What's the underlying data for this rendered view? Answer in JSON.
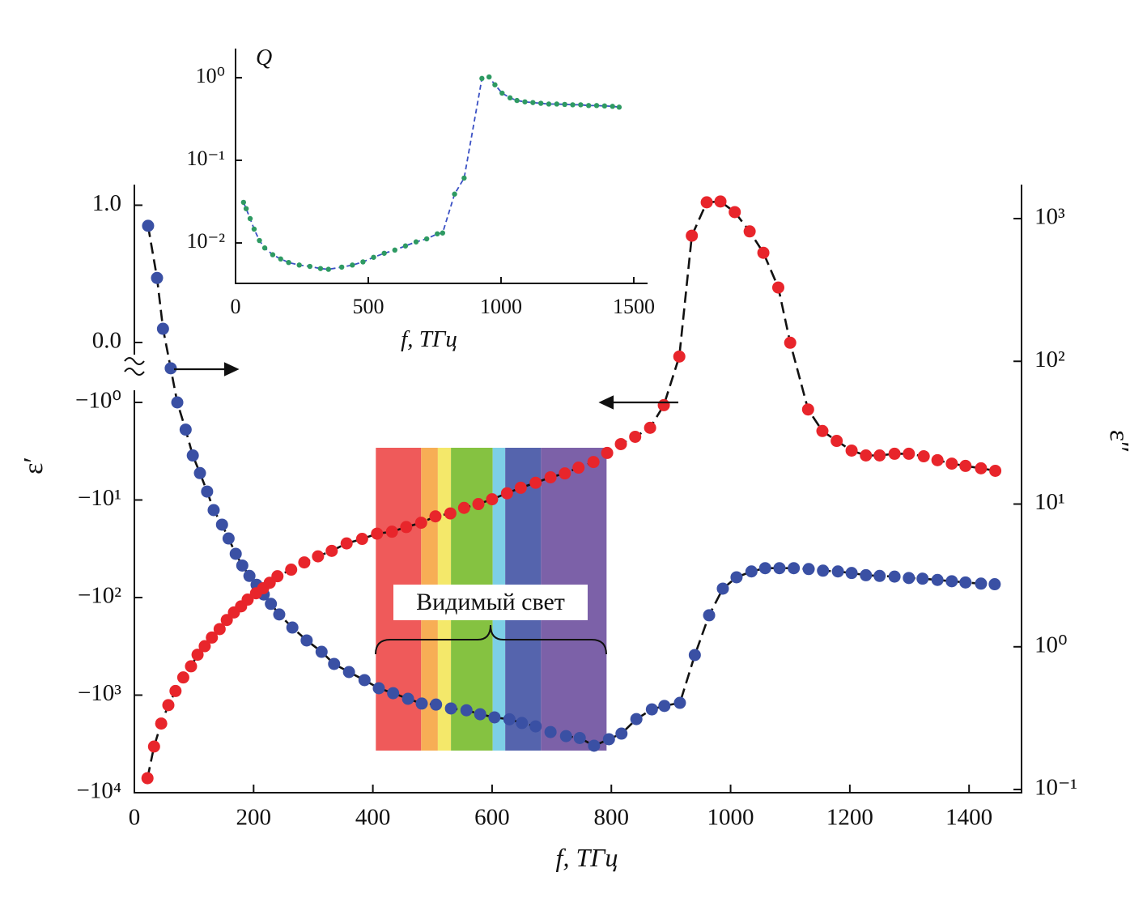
{
  "chart_data": [
    {
      "type": "line",
      "x_label": "f, ТГц",
      "y_label": "ε′",
      "y2_label": "ε″",
      "annotation": "Видимый свет",
      "xlim": [
        0,
        1488
      ],
      "xticks": [
        0,
        200,
        400,
        600,
        800,
        1000,
        1200,
        1400
      ],
      "ylim": [
        -10000,
        1.15
      ],
      "yticks": [
        {
          "value": 1,
          "label": "1.0"
        },
        {
          "value": 0,
          "label": "0.0"
        },
        {
          "value": -1,
          "label": "−10⁰"
        },
        {
          "value": -10,
          "label": "−10¹"
        },
        {
          "value": -100,
          "label": "−10²"
        },
        {
          "value": -1000,
          "label": "−10³"
        },
        {
          "value": -10000,
          "label": "−10⁴"
        }
      ],
      "y2lim": [
        0.095,
        1730
      ],
      "y2scale": "log",
      "y2ticks": [
        {
          "value": 0.1,
          "label": "10⁻¹"
        },
        {
          "value": 1,
          "label": "10⁰"
        },
        {
          "value": 10,
          "label": "10¹"
        },
        {
          "value": 100,
          "label": "10²"
        },
        {
          "value": 1000,
          "label": "10³"
        }
      ],
      "visible_bands": [
        {
          "from": 405,
          "to": 481,
          "color": "#ef5a5a"
        },
        {
          "from": 481,
          "to": 509,
          "color": "#f7ae55"
        },
        {
          "from": 509,
          "to": 531,
          "color": "#f4e86a"
        },
        {
          "from": 531,
          "to": 601,
          "color": "#85c241"
        },
        {
          "from": 601,
          "to": 622,
          "color": "#7dcfe6"
        },
        {
          "from": 622,
          "to": 682,
          "color": "#5564ad"
        },
        {
          "from": 682,
          "to": 792,
          "color": "#7c61a8"
        }
      ],
      "series": [
        {
          "color": "#3a50a4",
          "line_color": "#111111",
          "x": [
            23,
            38,
            48,
            61,
            72,
            86,
            98,
            110,
            122,
            133,
            147,
            158,
            170,
            181,
            193,
            205,
            217,
            229,
            243,
            265,
            289,
            314,
            335,
            360,
            386,
            410,
            434,
            459,
            482,
            506,
            531,
            557,
            580,
            604,
            629,
            650,
            673,
            698,
            724,
            747,
            771,
            796,
            817,
            842,
            868,
            889,
            915,
            940,
            964,
            987,
            1010,
            1035,
            1058,
            1082,
            1106,
            1131,
            1155,
            1180,
            1203,
            1227,
            1250,
            1275,
            1299,
            1322,
            1347,
            1371,
            1394,
            1420,
            1443
          ],
          "values": [
            0.85,
            0.47,
            0.1,
            -0.43,
            -1.0,
            -1.9,
            -3.5,
            -5.3,
            -8.2,
            -12.7,
            -17.9,
            -24.8,
            -35.6,
            -47,
            -60,
            -74,
            -93,
            -116,
            -149,
            -203,
            -275,
            -360,
            -479,
            -580,
            -702,
            -850,
            -955,
            -1090,
            -1220,
            -1250,
            -1370,
            -1430,
            -1570,
            -1690,
            -1770,
            -1930,
            -2090,
            -2390,
            -2630,
            -2750,
            -3300,
            -2830,
            -2480,
            -1760,
            -1400,
            -1290,
            -1200,
            -388,
            -152,
            -81,
            -62,
            -54,
            -50,
            -50,
            -50,
            -51,
            -53,
            -54,
            -56,
            -59,
            -60,
            -61,
            -63,
            -64,
            -66,
            -68,
            -70,
            -72,
            -73
          ]
        },
        {
          "color": "#e8252b",
          "line_color": "#111111",
          "axis": "y2",
          "x": [
            22,
            33,
            45,
            57,
            69,
            82,
            95,
            106,
            118,
            130,
            143,
            155,
            167,
            179,
            190,
            204,
            216,
            227,
            240,
            263,
            285,
            308,
            331,
            356,
            382,
            407,
            432,
            456,
            481,
            505,
            530,
            553,
            577,
            600,
            625,
            648,
            673,
            698,
            722,
            745,
            770,
            793,
            816,
            840,
            865,
            888,
            914,
            935,
            960,
            983,
            1007,
            1032,
            1055,
            1080,
            1100,
            1130,
            1154,
            1178,
            1203,
            1227,
            1250,
            1275,
            1299,
            1324,
            1347,
            1371,
            1394,
            1420,
            1444
          ],
          "values": [
            0.12,
            0.2,
            0.29,
            0.39,
            0.49,
            0.61,
            0.73,
            0.88,
            1.01,
            1.16,
            1.33,
            1.54,
            1.74,
            1.92,
            2.14,
            2.37,
            2.57,
            2.81,
            3.12,
            3.47,
            3.9,
            4.3,
            4.7,
            5.3,
            5.7,
            6.2,
            6.4,
            6.9,
            7.4,
            8.2,
            8.6,
            9.4,
            10,
            10.8,
            11.9,
            13,
            14.1,
            15.4,
            16.4,
            18,
            19.7,
            22.8,
            26.3,
            29.6,
            34.2,
            49.3,
            108,
            759,
            1300,
            1318,
            1110,
            813,
            576,
            329,
            135,
            46,
            32.5,
            27.7,
            23.7,
            21.9,
            21.9,
            22.5,
            22.5,
            21.6,
            20.3,
            19.2,
            18.5,
            17.8,
            17.1
          ]
        }
      ]
    },
    {
      "type": "line",
      "x_label": "f, ТГц",
      "y_label": "Q",
      "xlim": [
        0,
        1552
      ],
      "xticks": [
        0,
        500,
        1000,
        1500
      ],
      "ylim": [
        0.00324,
        2.25
      ],
      "yscale": "log",
      "yticks": [
        {
          "value": 0.01,
          "label": "10⁻²"
        },
        {
          "value": 0.1,
          "label": "10⁻¹"
        },
        {
          "value": 1,
          "label": "10⁰"
        }
      ],
      "series": [
        {
          "color": "#2e9a62",
          "line_color": "#3a50c4",
          "x": [
            30,
            40,
            55,
            70,
            90,
            110,
            140,
            170,
            200,
            240,
            280,
            320,
            350,
            400,
            440,
            480,
            520,
            560,
            600,
            640,
            680,
            720,
            760,
            780,
            825,
            861,
            928,
            955,
            977,
            1004,
            1034,
            1060,
            1090,
            1120,
            1150,
            1180,
            1210,
            1240,
            1270,
            1300,
            1330,
            1360,
            1390,
            1420,
            1445
          ],
          "values": [
            0.031,
            0.026,
            0.0197,
            0.0147,
            0.0107,
            0.0087,
            0.0072,
            0.0064,
            0.0058,
            0.0054,
            0.0052,
            0.0049,
            0.0048,
            0.0051,
            0.0054,
            0.0059,
            0.0067,
            0.0075,
            0.0082,
            0.0092,
            0.0103,
            0.0112,
            0.0129,
            0.0132,
            0.039,
            0.061,
            0.98,
            1.02,
            0.82,
            0.65,
            0.57,
            0.53,
            0.51,
            0.5,
            0.49,
            0.48,
            0.48,
            0.475,
            0.47,
            0.47,
            0.46,
            0.46,
            0.455,
            0.45,
            0.44
          ]
        }
      ]
    }
  ]
}
